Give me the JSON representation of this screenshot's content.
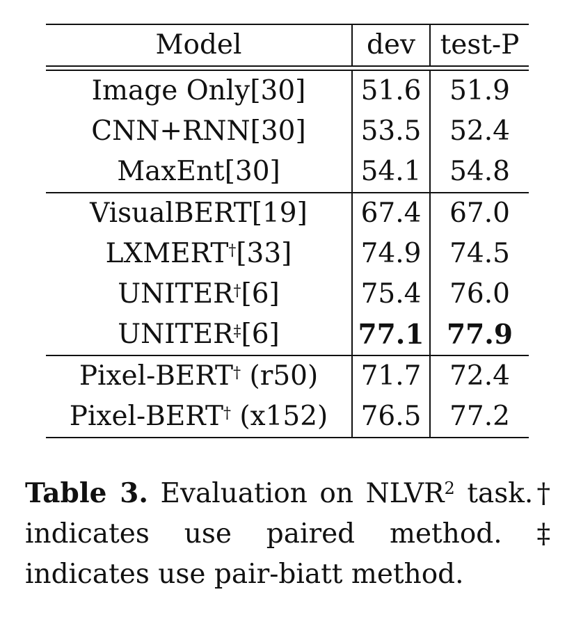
{
  "table": {
    "headers": {
      "model": "Model",
      "dev": "dev",
      "test": "test-P"
    },
    "groups": [
      {
        "rows": [
          {
            "name": "Image Only",
            "mark": "",
            "ref": "[30]",
            "suffix": "",
            "dev": "51.6",
            "test": "51.9",
            "bold": false
          },
          {
            "name": "CNN+RNN",
            "mark": "",
            "ref": "[30]",
            "suffix": "",
            "dev": "53.5",
            "test": "52.4",
            "bold": false
          },
          {
            "name": "MaxEnt",
            "mark": "",
            "ref": "[30]",
            "suffix": "",
            "dev": "54.1",
            "test": "54.8",
            "bold": false
          }
        ]
      },
      {
        "rows": [
          {
            "name": "VisualBERT",
            "mark": "",
            "ref": "[19]",
            "suffix": "",
            "dev": "67.4",
            "test": "67.0",
            "bold": false
          },
          {
            "name": "LXMERT",
            "mark": "†",
            "ref": "[33]",
            "suffix": "",
            "dev": "74.9",
            "test": "74.5",
            "bold": false
          },
          {
            "name": "UNITER",
            "mark": "†",
            "ref": "[6]",
            "suffix": "",
            "dev": "75.4",
            "test": "76.0",
            "bold": false
          },
          {
            "name": "UNITER",
            "mark": "‡",
            "ref": "[6]",
            "suffix": "",
            "dev": "77.1",
            "test": "77.9",
            "bold": true
          }
        ]
      },
      {
        "rows": [
          {
            "name": "Pixel-BERT",
            "mark": "†",
            "ref": "",
            "suffix": " (r50)",
            "dev": "71.7",
            "test": "72.4",
            "bold": false
          },
          {
            "name": "Pixel-BERT",
            "mark": "†",
            "ref": "",
            "suffix": " (x152)",
            "dev": "76.5",
            "test": "77.2",
            "bold": false
          }
        ]
      }
    ]
  },
  "caption": {
    "label": "Table 3.",
    "text_before_sup": "Evaluation on NLVR",
    "sup": "2",
    "text_after_sup": " task.† indicates use paired method. ‡ indicates use pair-biatt method."
  }
}
